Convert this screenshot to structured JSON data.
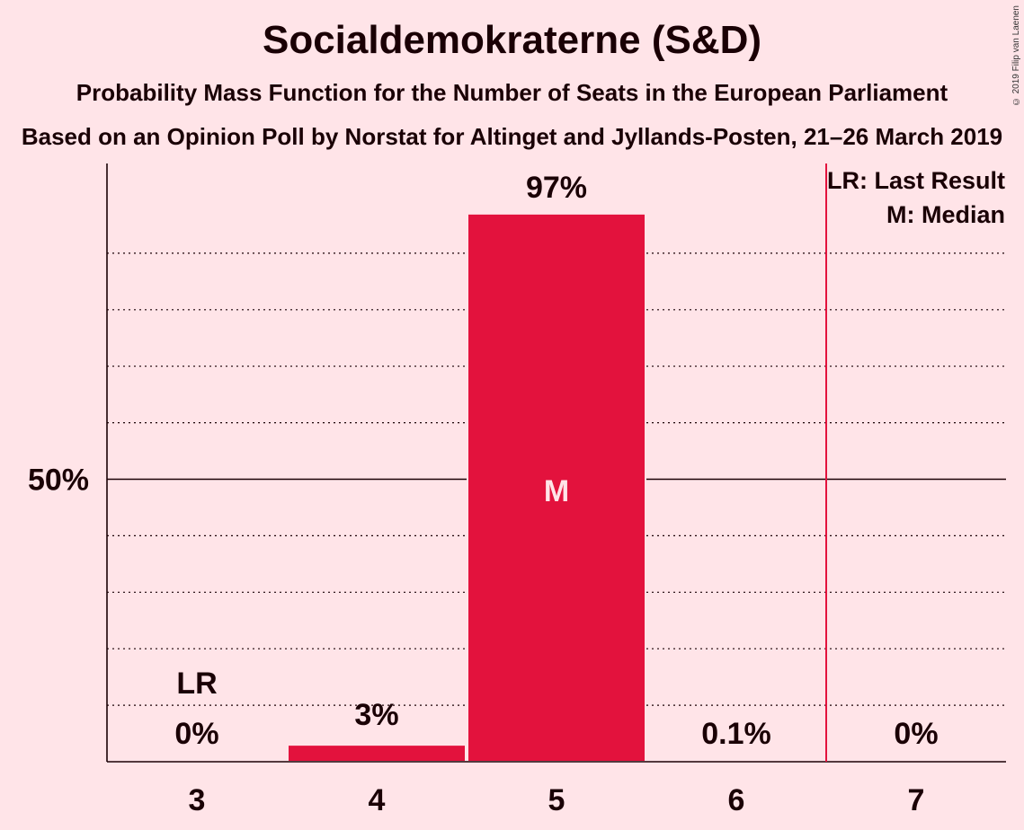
{
  "chart_data": {
    "type": "bar",
    "title": "Socialdemokraterne (S&D)",
    "subtitle": "Probability Mass Function for the Number of Seats in the European Parliament",
    "subtitle2": "Based on an Opinion Poll by Norstat for Altinget and Jyllands-Posten, 21–26 March 2019",
    "copyright": "© 2019 Filip van Laenen",
    "categories": [
      "3",
      "4",
      "5",
      "6",
      "7"
    ],
    "values": [
      0,
      3,
      97,
      0.1,
      0
    ],
    "value_labels": [
      "0%",
      "3%",
      "97%",
      "0.1%",
      "0%"
    ],
    "ylim": [
      0,
      105
    ],
    "y_tick_label": "50%",
    "y_tick_value": 50,
    "gridlines": [
      10,
      20,
      30,
      40,
      60,
      70,
      80,
      90
    ],
    "last_result": {
      "category": "3",
      "label": "LR"
    },
    "median": {
      "category": "5",
      "label": "M"
    },
    "majority_line_after": "6",
    "legend": [
      "LR: Last Result",
      "M: Median"
    ],
    "bar_color": "#e3123d",
    "line_color": "#e3123d"
  }
}
